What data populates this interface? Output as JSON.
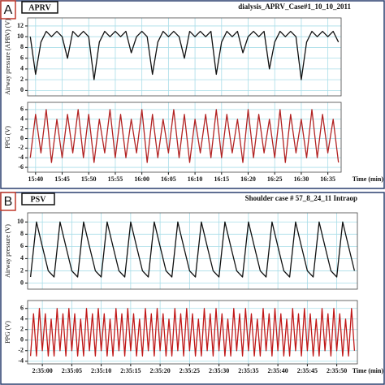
{
  "panels": [
    {
      "label": "A",
      "mode": "APRV",
      "case": "dialysis_APRV_Case#1_10_10_2011"
    },
    {
      "label": "B",
      "mode": "PSV",
      "case": "Shoulder case # 57_8_24_11 Intraop"
    }
  ],
  "chart_data": [
    {
      "type": "line",
      "y_label": "Airway pressure (APRV) (V)",
      "color": "#111111",
      "grid": true,
      "xlim": [
        -1.5,
        57.5
      ],
      "xticks": [
        0,
        5,
        10,
        15,
        20,
        25,
        30,
        35,
        40,
        45,
        50,
        55
      ],
      "ylim": [
        -1,
        13.5
      ],
      "yticks": [
        0,
        2,
        4,
        6,
        8,
        10,
        12
      ],
      "x": [
        -1,
        0,
        1,
        2,
        3,
        4,
        5,
        6,
        7,
        8,
        9,
        10,
        11,
        12,
        13,
        14,
        15,
        16,
        17,
        18,
        19,
        20,
        21,
        22,
        23,
        24,
        25,
        26,
        27,
        28,
        29,
        30,
        31,
        32,
        33,
        34,
        35,
        36,
        37,
        38,
        39,
        40,
        41,
        42,
        43,
        44,
        45,
        46,
        47,
        48,
        49,
        50,
        51,
        52,
        53,
        54,
        55,
        56,
        57
      ],
      "values": [
        10,
        3,
        9,
        11,
        10,
        11,
        10,
        6,
        11,
        10,
        11,
        10,
        2,
        9,
        11,
        10,
        11,
        10,
        11,
        7,
        10,
        11,
        10,
        3,
        9,
        11,
        10,
        11,
        10,
        6,
        11,
        10,
        11,
        10,
        11,
        3,
        9,
        11,
        10,
        11,
        7,
        10,
        11,
        10,
        11,
        4,
        9,
        11,
        10,
        11,
        10,
        2,
        9,
        11,
        10,
        11,
        10,
        11,
        9
      ]
    },
    {
      "type": "line",
      "y_label": "PPG (V)",
      "x_label": "Time (min)",
      "color": "#b22222",
      "grid": true,
      "xlim": [
        -1.5,
        57.5
      ],
      "xticks": [
        {
          "value": 0,
          "label": "15:40"
        },
        {
          "value": 5,
          "label": "15:45"
        },
        {
          "value": 10,
          "label": "15:50"
        },
        {
          "value": 15,
          "label": "15:55"
        },
        {
          "value": 20,
          "label": "16:00"
        },
        {
          "value": 25,
          "label": "16:05"
        },
        {
          "value": 30,
          "label": "16:10"
        },
        {
          "value": 35,
          "label": "16:15"
        },
        {
          "value": 40,
          "label": "16:20"
        },
        {
          "value": 45,
          "label": "16:25"
        },
        {
          "value": 50,
          "label": "16:30"
        },
        {
          "value": 55,
          "label": "16:35"
        }
      ],
      "ylim": [
        -7,
        7.5
      ],
      "yticks": [
        6,
        4,
        2,
        0,
        -2,
        -4,
        -6
      ],
      "x": [
        -1,
        0,
        1,
        2,
        3,
        4,
        5,
        6,
        7,
        8,
        9,
        10,
        11,
        12,
        13,
        14,
        15,
        16,
        17,
        18,
        19,
        20,
        21,
        22,
        23,
        24,
        25,
        26,
        27,
        28,
        29,
        30,
        31,
        32,
        33,
        34,
        35,
        36,
        37,
        38,
        39,
        40,
        41,
        42,
        43,
        44,
        45,
        46,
        47,
        48,
        49,
        50,
        51,
        52,
        53,
        54,
        55,
        56,
        57
      ],
      "values": [
        -4,
        5,
        -3,
        6,
        -5,
        4,
        -4,
        5,
        -3,
        6,
        -4,
        5,
        -5,
        4,
        -3,
        6,
        -4,
        5,
        -4,
        4,
        -3,
        6,
        -5,
        5,
        -4,
        4,
        -3,
        6,
        -4,
        5,
        -5,
        4,
        -3,
        5,
        -4,
        6,
        -4,
        5,
        -3,
        4,
        -5,
        6,
        -4,
        5,
        -3,
        4,
        -4,
        6,
        -5,
        5,
        -3,
        4,
        -4,
        6,
        -4,
        5,
        -3,
        4,
        -5
      ]
    },
    {
      "type": "line",
      "y_label": "Airway pressure (V)",
      "color": "#111111",
      "grid": true,
      "xlim": [
        -2.5,
        53.5
      ],
      "xticks": [
        0,
        5,
        10,
        15,
        20,
        25,
        30,
        35,
        40,
        45,
        50
      ],
      "ylim": [
        -1,
        11.5
      ],
      "yticks": [
        0,
        2,
        4,
        6,
        8,
        10
      ],
      "x": [
        -2,
        -1,
        0,
        1,
        2,
        3,
        4,
        5,
        6,
        7,
        8,
        9,
        10,
        11,
        12,
        13,
        14,
        15,
        16,
        17,
        18,
        19,
        20,
        21,
        22,
        23,
        24,
        25,
        26,
        27,
        28,
        29,
        30,
        31,
        32,
        33,
        34,
        35,
        36,
        37,
        38,
        39,
        40,
        41,
        42,
        43,
        44,
        45,
        46,
        47,
        48,
        49,
        50,
        51,
        52,
        53
      ],
      "values": [
        1,
        10,
        6,
        2,
        1,
        10,
        6,
        2,
        1,
        10,
        6,
        2,
        1,
        10,
        6,
        2,
        1,
        10,
        6,
        2,
        1,
        10,
        6,
        2,
        1,
        10,
        6,
        2,
        1,
        10,
        6,
        2,
        1,
        10,
        6,
        2,
        1,
        10,
        6,
        2,
        1,
        10,
        6,
        2,
        1,
        10,
        6,
        2,
        1,
        10,
        6,
        2,
        1,
        10,
        6,
        2
      ]
    },
    {
      "type": "line",
      "y_label": "PPG (V)",
      "x_label": "Time (min)",
      "color": "#c01818",
      "grid": true,
      "xlim": [
        -2.5,
        53.5
      ],
      "xticks": [
        {
          "value": 0,
          "label": "2:35:00"
        },
        {
          "value": 5,
          "label": "2:35:05"
        },
        {
          "value": 10,
          "label": "2:35:10"
        },
        {
          "value": 15,
          "label": "2:35:15"
        },
        {
          "value": 20,
          "label": "2:35:20"
        },
        {
          "value": 25,
          "label": "2:35:25"
        },
        {
          "value": 30,
          "label": "2:35:30"
        },
        {
          "value": 35,
          "label": "2:35:35"
        },
        {
          "value": 40,
          "label": "2:35:40"
        },
        {
          "value": 45,
          "label": "2:35:45"
        },
        {
          "value": 50,
          "label": "2:35:50"
        }
      ],
      "ylim": [
        -4.5,
        7.5
      ],
      "yticks": [
        6,
        4,
        2,
        0,
        -2,
        -4
      ],
      "x": [
        -2,
        -1.5,
        -1,
        -0.5,
        0,
        0.5,
        1,
        1.5,
        2,
        2.5,
        3,
        3.5,
        4,
        4.5,
        5,
        5.5,
        6,
        6.5,
        7,
        7.5,
        8,
        8.5,
        9,
        9.5,
        10,
        10.5,
        11,
        11.5,
        12,
        12.5,
        13,
        13.5,
        14,
        14.5,
        15,
        15.5,
        16,
        16.5,
        17,
        17.5,
        18,
        18.5,
        19,
        19.5,
        20,
        20.5,
        21,
        21.5,
        22,
        22.5,
        23,
        23.5,
        24,
        24.5,
        25,
        25.5,
        26,
        26.5,
        27,
        27.5,
        28,
        28.5,
        29,
        29.5,
        30,
        30.5,
        31,
        31.5,
        32,
        32.5,
        33,
        33.5,
        34,
        34.5,
        35,
        35.5,
        36,
        36.5,
        37,
        37.5,
        38,
        38.5,
        39,
        39.5,
        40,
        40.5,
        41,
        41.5,
        42,
        42.5,
        43,
        43.5,
        44,
        44.5,
        45,
        45.5,
        46,
        46.5,
        47,
        47.5,
        48,
        48.5,
        49,
        49.5,
        50,
        50.5,
        51,
        51.5,
        52,
        52.5,
        53
      ],
      "values": [
        -3,
        5,
        -3,
        6,
        -2,
        5,
        -3,
        4,
        -3,
        6,
        -2,
        5,
        -3,
        6,
        -2,
        5,
        -3,
        4,
        -3,
        6,
        -2,
        5,
        -3,
        6,
        -2,
        5,
        -3,
        4,
        -3,
        6,
        -2,
        5,
        -3,
        6,
        -2,
        5,
        -3,
        4,
        -3,
        6,
        -2,
        5,
        -3,
        6,
        -2,
        5,
        -3,
        4,
        -3,
        6,
        -2,
        5,
        -3,
        6,
        -2,
        5,
        -3,
        4,
        -3,
        6,
        -2,
        5,
        -3,
        6,
        -2,
        5,
        -3,
        4,
        -3,
        6,
        -2,
        5,
        -3,
        6,
        -2,
        5,
        -3,
        4,
        -3,
        6,
        -2,
        5,
        -3,
        6,
        -2,
        5,
        -3,
        4,
        -3,
        6,
        -2,
        5,
        -3,
        6,
        -2,
        5,
        -3,
        4,
        -3,
        6,
        -2,
        5,
        -3,
        6,
        -2,
        5,
        -3,
        4,
        -3,
        6,
        -2
      ]
    }
  ]
}
